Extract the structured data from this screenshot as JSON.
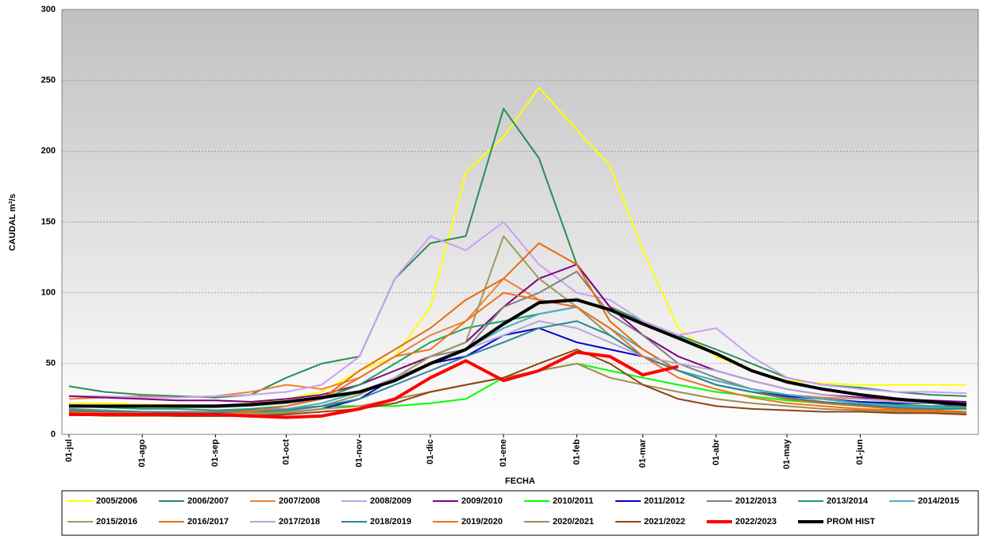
{
  "chart_data": {
    "type": "line",
    "ylabel": "CAUDAL m³/s",
    "xlabel": "FECHA",
    "xlim": [
      -3,
      385
    ],
    "ylim": [
      0,
      300
    ],
    "yticks": [
      0,
      50,
      100,
      150,
      200,
      250,
      300
    ],
    "grid": true,
    "xticks": [
      {
        "value": 0,
        "label": "01-jul"
      },
      {
        "value": 31,
        "label": "01-ago"
      },
      {
        "value": 62,
        "label": "01-sep"
      },
      {
        "value": 92,
        "label": "01-oct"
      },
      {
        "value": 123,
        "label": "01-nov"
      },
      {
        "value": 153,
        "label": "01-dic"
      },
      {
        "value": 184,
        "label": "01-ene"
      },
      {
        "value": 215,
        "label": "01-feb"
      },
      {
        "value": 243,
        "label": "01-mar"
      },
      {
        "value": 274,
        "label": "01-abr"
      },
      {
        "value": 304,
        "label": "01-may"
      },
      {
        "value": 335,
        "label": "01-jun"
      }
    ],
    "x": [
      0,
      15,
      31,
      46,
      62,
      77,
      92,
      107,
      123,
      138,
      153,
      168,
      184,
      199,
      215,
      229,
      243,
      258,
      274,
      289,
      304,
      319,
      335,
      350,
      365,
      380
    ],
    "series": [
      {
        "name": "2005/2006",
        "color": "#ffff00",
        "values": [
          22,
          22,
          21,
          21,
          20,
          22,
          25,
          30,
          45,
          55,
          90,
          185,
          210,
          245,
          215,
          190,
          130,
          75,
          55,
          45,
          38,
          36,
          35,
          35,
          35,
          35
        ]
      },
      {
        "name": "2006/2007",
        "color": "#2e8b57",
        "values": [
          34,
          30,
          28,
          27,
          26,
          28,
          40,
          50,
          55,
          110,
          135,
          140,
          230,
          195,
          120,
          90,
          80,
          70,
          60,
          50,
          40,
          35,
          33,
          30,
          28,
          27
        ]
      },
      {
        "name": "2007/2008",
        "color": "#f08030",
        "values": [
          25,
          26,
          27,
          26,
          27,
          30,
          35,
          32,
          40,
          55,
          70,
          80,
          110,
          95,
          90,
          70,
          55,
          45,
          35,
          30,
          28,
          26,
          25,
          24,
          23,
          22
        ]
      },
      {
        "name": "2008/2009",
        "color": "#c8a0f0",
        "values": [
          27,
          27,
          26,
          26,
          27,
          28,
          30,
          35,
          55,
          110,
          140,
          130,
          150,
          120,
          100,
          95,
          80,
          70,
          75,
          55,
          40,
          35,
          32,
          30,
          30,
          29
        ]
      },
      {
        "name": "2009/2010",
        "color": "#800080",
        "values": [
          27,
          26,
          25,
          24,
          24,
          23,
          25,
          28,
          35,
          45,
          55,
          65,
          90,
          110,
          120,
          90,
          70,
          55,
          45,
          38,
          32,
          28,
          26,
          25,
          24,
          23
        ]
      },
      {
        "name": "2010/2011",
        "color": "#00ff00",
        "values": [
          18,
          17,
          16,
          16,
          16,
          17,
          18,
          20,
          20,
          20,
          22,
          25,
          40,
          45,
          50,
          45,
          40,
          35,
          30,
          27,
          24,
          22,
          20,
          19,
          18,
          18
        ]
      },
      {
        "name": "2011/2012",
        "color": "#0000cc",
        "values": [
          16,
          15,
          14,
          14,
          13,
          14,
          15,
          18,
          25,
          40,
          50,
          55,
          70,
          75,
          65,
          60,
          55,
          45,
          35,
          30,
          27,
          25,
          23,
          22,
          22,
          20
        ]
      },
      {
        "name": "2012/2013",
        "color": "#808080",
        "values": [
          18,
          17,
          16,
          16,
          16,
          17,
          18,
          20,
          28,
          40,
          55,
          60,
          90,
          100,
          115,
          85,
          70,
          50,
          40,
          32,
          28,
          25,
          22,
          20,
          19,
          19
        ]
      },
      {
        "name": "2013/2014",
        "color": "#20a060",
        "values": [
          20,
          19,
          18,
          18,
          17,
          18,
          20,
          25,
          35,
          50,
          65,
          75,
          80,
          85,
          90,
          70,
          55,
          45,
          38,
          32,
          28,
          25,
          22,
          21,
          20,
          20
        ]
      },
      {
        "name": "2014/2015",
        "color": "#4bacc6",
        "values": [
          17,
          16,
          15,
          15,
          15,
          16,
          18,
          22,
          30,
          40,
          50,
          60,
          75,
          85,
          90,
          75,
          60,
          45,
          38,
          32,
          28,
          25,
          22,
          20,
          19,
          18
        ]
      },
      {
        "name": "2015/2016",
        "color": "#9b9b5f",
        "values": [
          16,
          15,
          15,
          14,
          14,
          15,
          16,
          20,
          28,
          40,
          55,
          65,
          140,
          110,
          90,
          70,
          55,
          45,
          35,
          30,
          26,
          23,
          20,
          18,
          17,
          16
        ]
      },
      {
        "name": "2016/2017",
        "color": "#e46c0a",
        "values": [
          16,
          16,
          15,
          15,
          15,
          16,
          20,
          25,
          45,
          60,
          75,
          95,
          110,
          135,
          120,
          80,
          60,
          45,
          35,
          30,
          25,
          22,
          20,
          18,
          17,
          16
        ]
      },
      {
        "name": "2017/2018",
        "color": "#b4a7d6",
        "values": [
          21,
          20,
          20,
          19,
          19,
          20,
          22,
          25,
          30,
          40,
          50,
          60,
          70,
          80,
          75,
          65,
          55,
          50,
          45,
          38,
          32,
          28,
          25,
          23,
          22,
          21
        ]
      },
      {
        "name": "2018/2019",
        "color": "#31849b",
        "values": [
          17,
          16,
          16,
          15,
          15,
          16,
          17,
          20,
          25,
          35,
          45,
          55,
          65,
          75,
          80,
          70,
          55,
          45,
          35,
          30,
          26,
          23,
          21,
          19,
          18,
          18
        ]
      },
      {
        "name": "2019/2020",
        "color": "#f07020",
        "values": [
          15,
          15,
          15,
          14,
          14,
          16,
          20,
          25,
          40,
          55,
          60,
          80,
          100,
          95,
          90,
          75,
          55,
          40,
          32,
          26,
          22,
          20,
          18,
          17,
          16,
          15
        ]
      },
      {
        "name": "2020/2021",
        "color": "#a08c50",
        "values": [
          14,
          13,
          13,
          13,
          13,
          14,
          15,
          18,
          20,
          25,
          30,
          35,
          40,
          45,
          50,
          40,
          35,
          30,
          25,
          22,
          20,
          18,
          17,
          16,
          15,
          15
        ]
      },
      {
        "name": "2021/2022",
        "color": "#8b4513",
        "values": [
          15,
          14,
          14,
          13,
          13,
          13,
          14,
          16,
          18,
          22,
          30,
          35,
          40,
          50,
          60,
          50,
          35,
          25,
          20,
          18,
          17,
          16,
          16,
          15,
          15,
          14
        ]
      },
      {
        "name": "2022/2023",
        "color": "#ff0000",
        "width": 4,
        "values": [
          14,
          14,
          14,
          14,
          14,
          13,
          12,
          13,
          18,
          25,
          40,
          52,
          38,
          45,
          58,
          55,
          42,
          48,
          null,
          null,
          null,
          null,
          null,
          null,
          null,
          null
        ]
      },
      {
        "name": "PROM HIST",
        "color": "#000000",
        "width": 4,
        "values": [
          20,
          20,
          20,
          20,
          20,
          21,
          23,
          26,
          30,
          38,
          50,
          60,
          78,
          93,
          95,
          88,
          78,
          68,
          57,
          45,
          37,
          32,
          28,
          25,
          23,
          21
        ]
      }
    ]
  }
}
